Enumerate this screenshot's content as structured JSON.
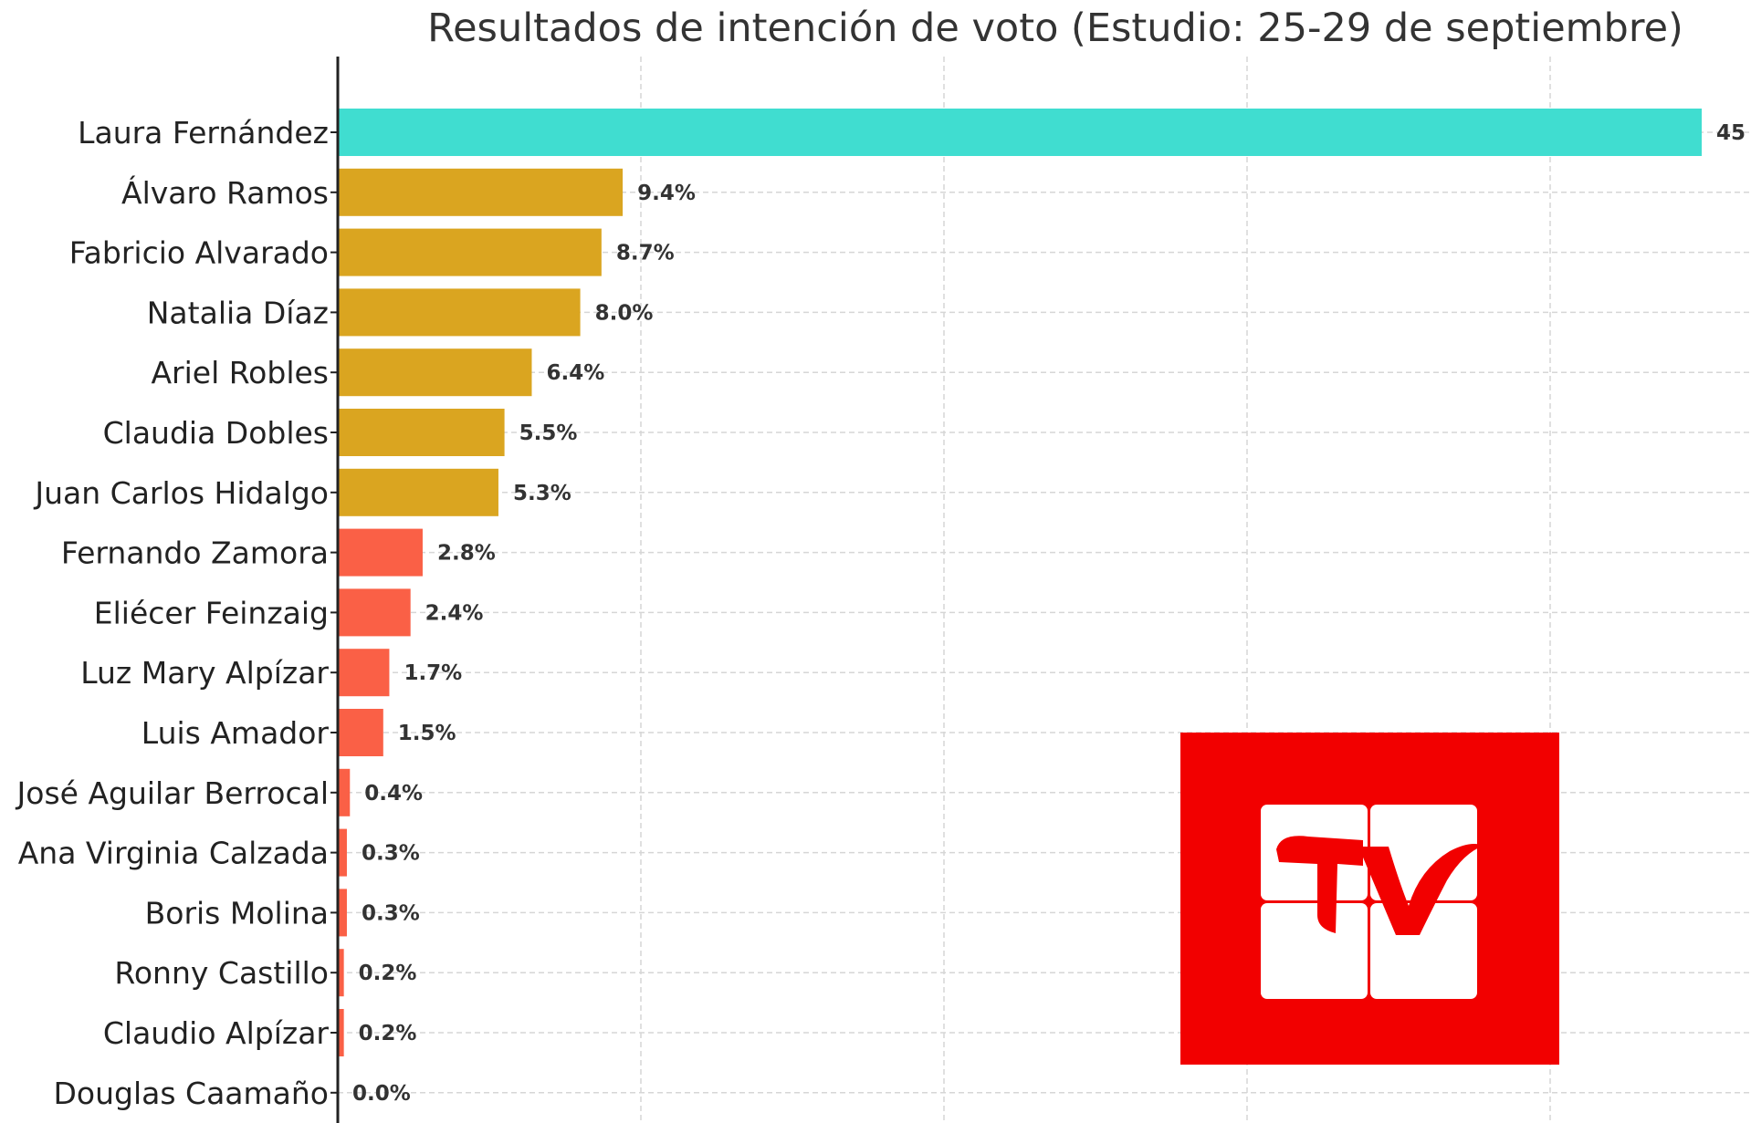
{
  "chart_data": {
    "type": "bar",
    "orientation": "horizontal",
    "title": "Resultados de intención de voto (Estudio: 25-29 de septiembre)",
    "xlabel": "",
    "ylabel": "",
    "xlim": [
      0,
      50
    ],
    "grid": true,
    "categories": [
      "Laura Fernández",
      "Álvaro Ramos",
      "Fabricio Alvarado",
      "Natalia Díaz",
      "Ariel Robles",
      "Claudia Dobles",
      "Juan Carlos Hidalgo",
      "Fernando Zamora",
      "Eliécer Feinzaig",
      "Luz Mary Alpízar",
      "Luis Amador",
      "José Aguilar Berrocal",
      "Ana Virginia Calzada",
      "Boris Molina",
      "Ronny Castillo",
      "Claudio Alpízar",
      "Douglas Caamaño"
    ],
    "values": [
      45,
      9.4,
      8.7,
      8.0,
      6.4,
      5.5,
      5.3,
      2.8,
      2.4,
      1.7,
      1.5,
      0.4,
      0.3,
      0.3,
      0.2,
      0.2,
      0.0
    ],
    "value_labels": [
      "45",
      "9.4%",
      "8.7%",
      "8.0%",
      "6.4%",
      "5.5%",
      "5.3%",
      "2.8%",
      "2.4%",
      "1.7%",
      "1.5%",
      "0.4%",
      "0.3%",
      "0.3%",
      "0.2%",
      "0.2%",
      "0.0%"
    ],
    "colors": [
      "#40ddd0",
      "#daa520",
      "#daa520",
      "#daa520",
      "#daa520",
      "#daa520",
      "#daa520",
      "#fa6046",
      "#fa6046",
      "#fa6046",
      "#fa6046",
      "#fa6046",
      "#fa6046",
      "#fa6046",
      "#fa6046",
      "#fa6046",
      "#fa6046"
    ]
  },
  "watermark": {
    "text": "TV",
    "background_color": "#f20000",
    "foreground_color": "#ffffff"
  }
}
